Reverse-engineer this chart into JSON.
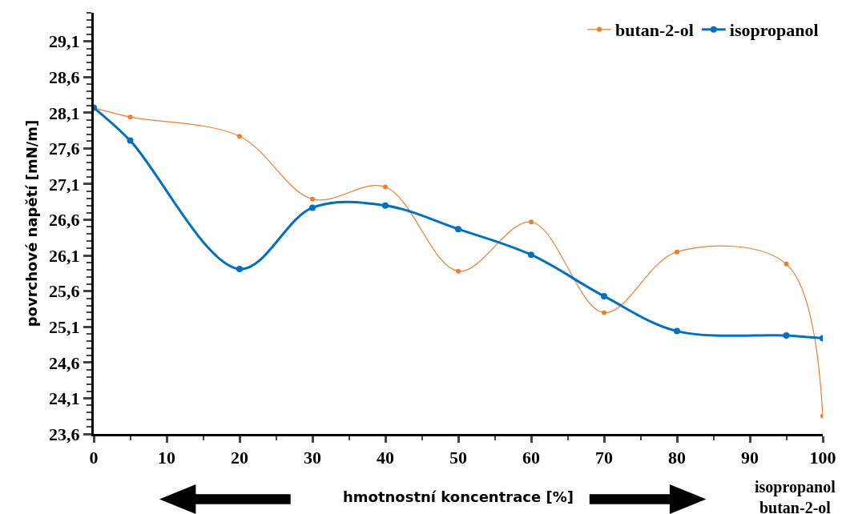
{
  "chart_data": {
    "type": "line",
    "xlabel": "hmotnostní koncentrace [%]",
    "ylabel": "povrchové napětí [mN/m]",
    "x": [
      0,
      5,
      20,
      30,
      40,
      50,
      60,
      70,
      80,
      95,
      100
    ],
    "series": [
      {
        "name": "butan-2-ol",
        "color": "#ed7d31",
        "values": [
          28.17,
          28.04,
          27.77,
          26.89,
          27.06,
          25.88,
          26.57,
          25.3,
          26.15,
          25.98,
          23.85
        ]
      },
      {
        "name": "isopropanol",
        "color": "#0070c0",
        "values": [
          28.17,
          27.71,
          25.91,
          26.77,
          26.8,
          26.47,
          26.11,
          25.53,
          25.04,
          24.98,
          24.94
        ]
      }
    ],
    "xlim": [
      0,
      100
    ],
    "xticks": [
      0,
      10,
      20,
      30,
      40,
      50,
      60,
      70,
      80,
      90,
      100
    ],
    "ylim": [
      23.6,
      29.5
    ],
    "yticks": [
      {
        "value": 23.6,
        "label": "23,6"
      },
      {
        "value": 24.1,
        "label": "24,1"
      },
      {
        "value": 24.6,
        "label": "24,6"
      },
      {
        "value": 25.1,
        "label": "25,1"
      },
      {
        "value": 25.6,
        "label": "25,6"
      },
      {
        "value": 26.1,
        "label": "26,1"
      },
      {
        "value": 26.6,
        "label": "26,6"
      },
      {
        "value": 27.1,
        "label": "27,1"
      },
      {
        "value": 27.6,
        "label": "27,6"
      },
      {
        "value": 28.1,
        "label": "28,1"
      },
      {
        "value": 28.6,
        "label": "28,6"
      },
      {
        "value": 29.1,
        "label": "29,1"
      }
    ],
    "annotations": [
      "isopropanol\nbutan-2-ol"
    ],
    "grid": false,
    "legend": "top right",
    "marker": "circle",
    "line_style": "solid"
  }
}
